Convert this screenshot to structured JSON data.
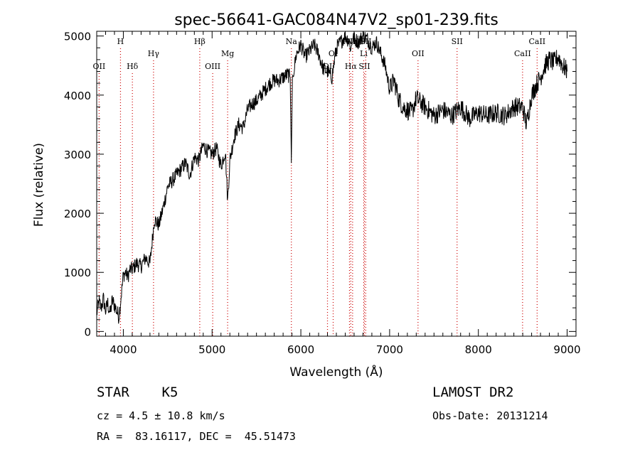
{
  "chart_data": {
    "type": "line",
    "title": "spec-56641-GAC084N47V2_sp01-239.fits",
    "xlabel": "Wavelength (Å)",
    "ylabel": "Flux (relative)",
    "xlim": [
      3700,
      9100
    ],
    "ylim": [
      -80,
      5080
    ],
    "xticks": [
      4000,
      5000,
      6000,
      7000,
      8000,
      9000
    ],
    "xtick_labels": [
      "4000",
      "5000",
      "6000",
      "7000",
      "8000",
      "9000"
    ],
    "yticks": [
      0,
      1000,
      2000,
      3000,
      4000,
      5000
    ],
    "ytick_labels": [
      "0",
      "1000",
      "2000",
      "3000",
      "4000",
      "5000"
    ],
    "grid": false,
    "line_color": "#000000",
    "marker_color": "#cc0000",
    "series": [
      {
        "x": [
          3700,
          3725,
          3750,
          3775,
          3800,
          3825,
          3850,
          3875,
          3900,
          3925,
          3950,
          3975,
          4000,
          4025,
          4050,
          4075,
          4100,
          4150,
          4200,
          4250,
          4300,
          4350,
          4400,
          4450,
          4500,
          4550,
          4600,
          4650,
          4700,
          4750,
          4800,
          4850,
          4900,
          4950,
          5000,
          5050,
          5100,
          5150,
          5175,
          5200,
          5250,
          5300,
          5350,
          5400,
          5450,
          5500,
          5550,
          5600,
          5650,
          5700,
          5750,
          5800,
          5850,
          5880,
          5893,
          5905,
          5930,
          5950,
          6000,
          6050,
          6100,
          6150,
          6200,
          6250,
          6300,
          6350,
          6400,
          6450,
          6500,
          6550,
          6563,
          6580,
          6600,
          6650,
          6700,
          6750,
          6800,
          6850,
          6900,
          6950,
          7000,
          7050,
          7100,
          7150,
          7200,
          7250,
          7300,
          7400,
          7500,
          7600,
          7700,
          7800,
          7900,
          8000,
          8100,
          8200,
          8300,
          8400,
          8498,
          8542,
          8600,
          8662,
          8700,
          8750,
          8800,
          8850,
          8900,
          8950,
          9000
        ],
        "values": [
          300,
          500,
          400,
          550,
          350,
          480,
          300,
          520,
          450,
          350,
          250,
          600,
          950,
          1000,
          920,
          1050,
          1050,
          1150,
          1100,
          1250,
          1150,
          1900,
          1800,
          2100,
          2450,
          2550,
          2650,
          2750,
          2850,
          2650,
          2950,
          2900,
          3150,
          3050,
          3000,
          3100,
          2800,
          3050,
          2200,
          2900,
          3300,
          3500,
          3450,
          3750,
          3850,
          3900,
          4000,
          4100,
          4200,
          4250,
          4250,
          4300,
          4350,
          4300,
          2850,
          4300,
          4500,
          4700,
          4850,
          4650,
          4750,
          4850,
          4700,
          4450,
          4400,
          4300,
          4800,
          4900,
          5000,
          4900,
          4750,
          4950,
          4950,
          4900,
          5000,
          4950,
          4800,
          4900,
          4700,
          4500,
          4100,
          4250,
          3950,
          3800,
          3750,
          3700,
          3950,
          3800,
          3650,
          3750,
          3650,
          3800,
          3600,
          3700,
          3650,
          3700,
          3650,
          3800,
          3800,
          3500,
          4000,
          4200,
          4300,
          4500,
          4600,
          4550,
          4650,
          4500,
          4400
        ]
      }
    ],
    "lines": [
      {
        "label": "OII",
        "x": 3727,
        "row": 3
      },
      {
        "label": "H",
        "x": 3968,
        "row": 1
      },
      {
        "label": "Hδ",
        "x": 4102,
        "row": 3
      },
      {
        "label": "Hγ",
        "x": 4340,
        "row": 2
      },
      {
        "label": "Hβ",
        "x": 4861,
        "row": 1
      },
      {
        "label": "OIII",
        "x": 5007,
        "row": 3
      },
      {
        "label": "Mg",
        "x": 5175,
        "row": 2
      },
      {
        "label": "Na",
        "x": 5893,
        "row": 1
      },
      {
        "label": "OI",
        "x": 6300,
        "row": 3
      },
      {
        "label": "OI",
        "x": 6364,
        "row": 2
      },
      {
        "label": "NII",
        "x": 6548,
        "row": 1
      },
      {
        "label": "Hα",
        "x": 6563,
        "row": 3
      },
      {
        "label": "NII",
        "x": 6583,
        "row": 1
      },
      {
        "label": "Li",
        "x": 6708,
        "row": 2
      },
      {
        "label": "SII",
        "x": 6716,
        "row": 3
      },
      {
        "label": "SII",
        "x": 6731,
        "row": 1
      },
      {
        "label": "OII",
        "x": 7320,
        "row": 2
      },
      {
        "label": "SII",
        "x": 7760,
        "row": 1
      },
      {
        "label": "CaII",
        "x": 8498,
        "row": 2
      },
      {
        "label": "CaII",
        "x": 8662,
        "row": 1
      }
    ]
  },
  "info": {
    "object": "STAR    K5",
    "cz": "cz = 4.5 ± 10.8 km/s",
    "coords": "RA =  83.16117, DEC =  45.51473",
    "survey": "LAMOST DR2",
    "obs_date": "Obs-Date: 20131214"
  }
}
